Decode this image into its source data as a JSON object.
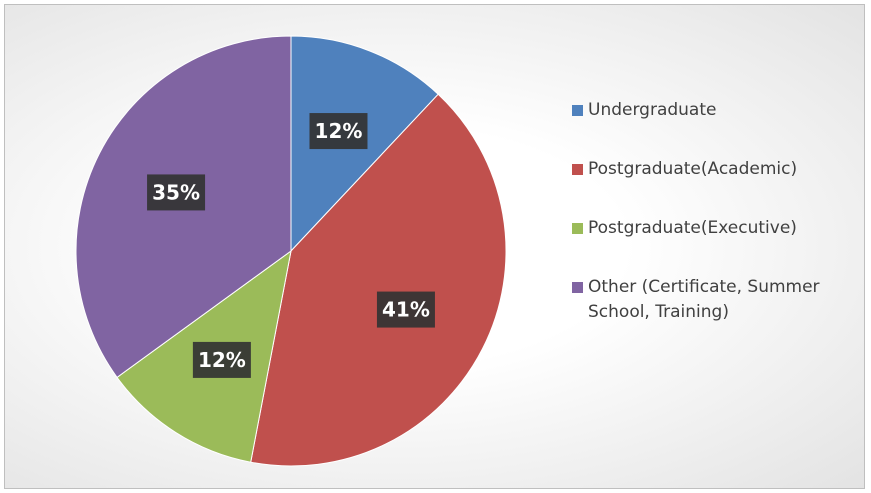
{
  "chart_data": {
    "type": "pie",
    "categories": [
      "Undergraduate",
      "Postgraduate(Academic)",
      "Postgraduate(Executive)",
      "Other (Certificate, Summer School, Training)"
    ],
    "values": [
      12,
      41,
      12,
      35
    ],
    "value_labels": [
      "12%",
      "41%",
      "12%",
      "35%"
    ],
    "colors": [
      "#4f81bd",
      "#c0504d",
      "#9bbb59",
      "#8064a2"
    ],
    "legend": "right"
  }
}
